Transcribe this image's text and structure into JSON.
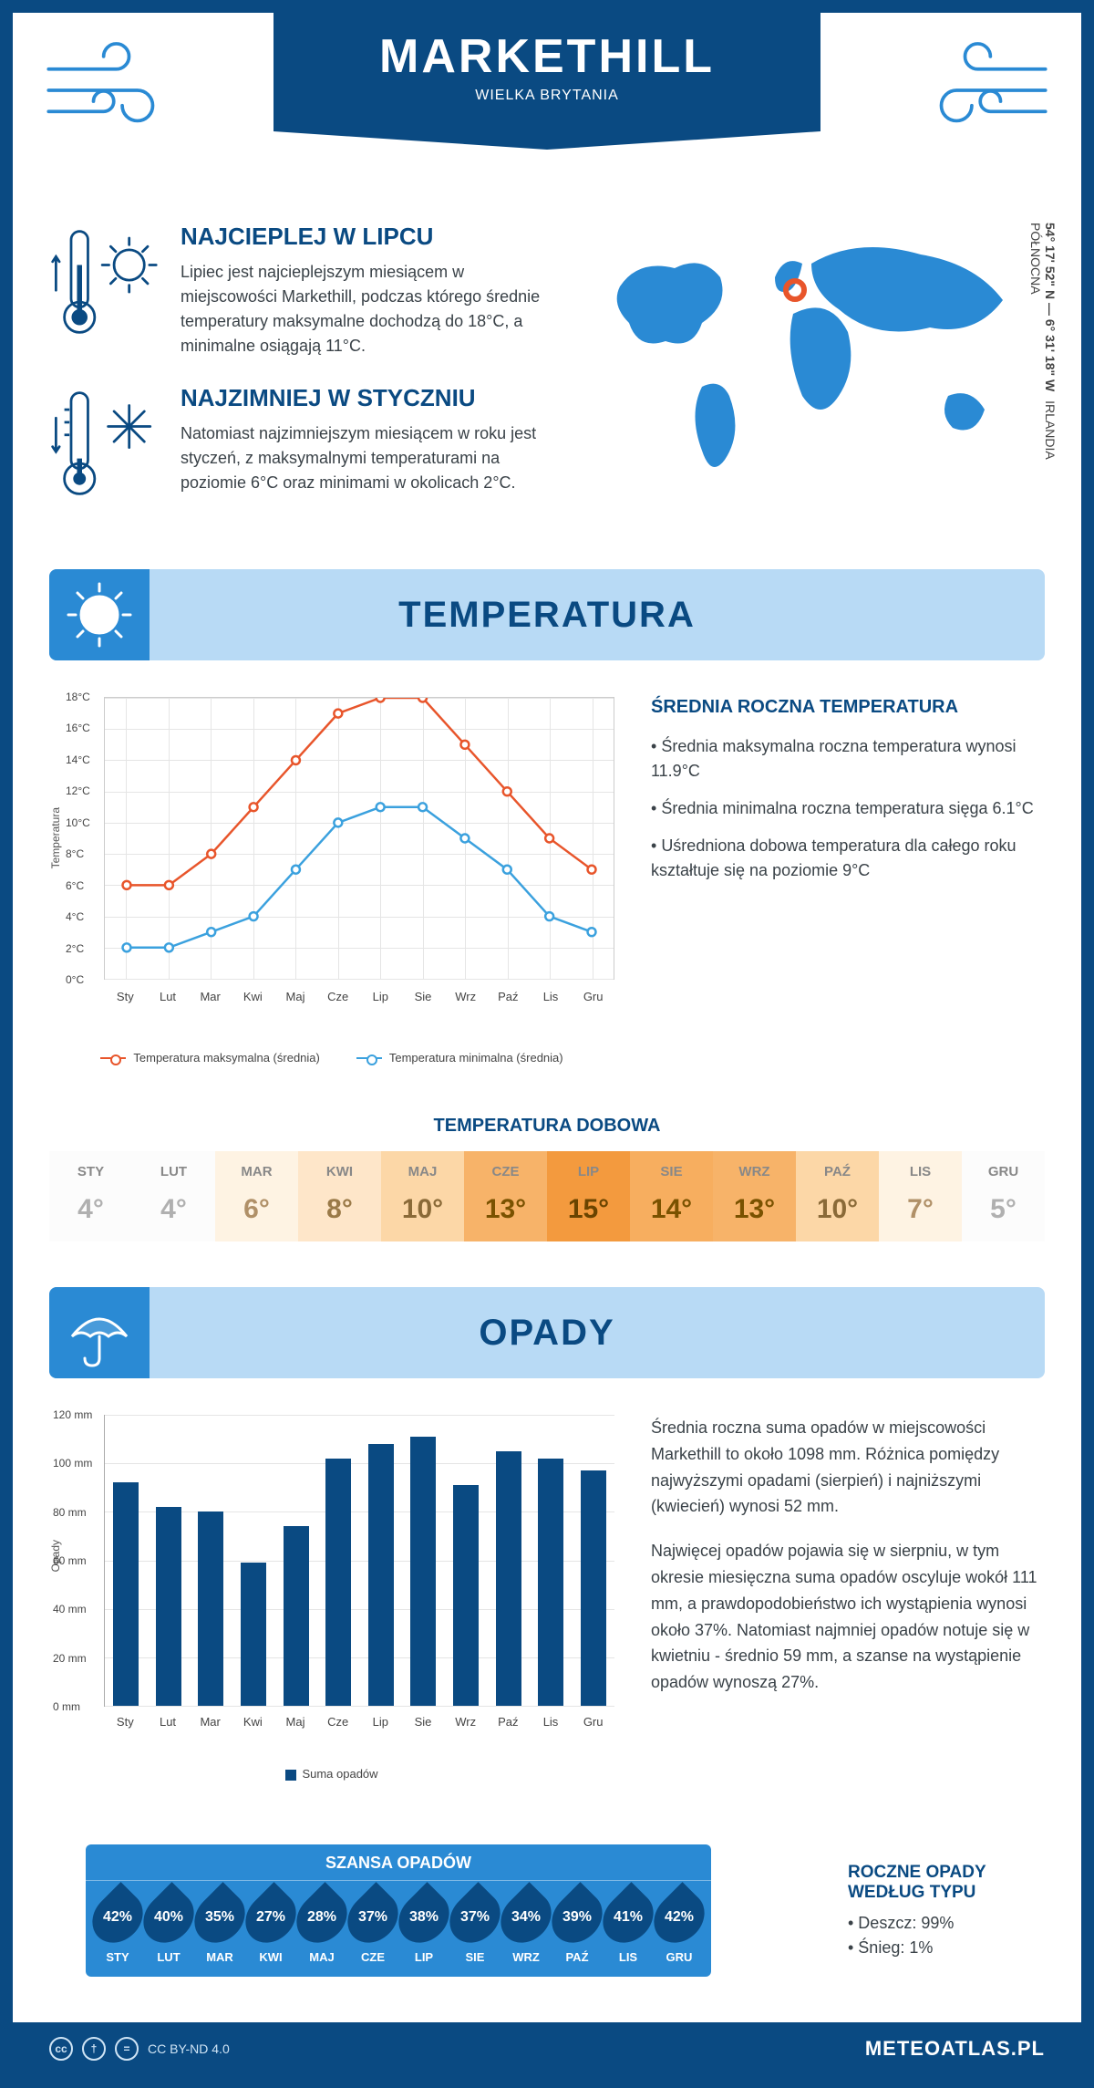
{
  "header": {
    "city": "MARKETHILL",
    "country": "WIELKA BRYTANIA"
  },
  "coords": {
    "line1": "54° 17' 52\" N — 6° 31' 18\" W",
    "line2": "IRLANDIA PÓŁNOCNA"
  },
  "hot": {
    "title": "NAJCIEPLEJ W LIPCU",
    "text": "Lipiec jest najcieplejszym miesiącem w miejscowości Markethill, podczas którego średnie temperatury maksymalne dochodzą do 18°C, a minimalne osiągają 11°C."
  },
  "cold": {
    "title": "NAJZIMNIEJ W STYCZNIU",
    "text": "Natomiast najzimniejszym miesiącem w roku jest styczeń, z maksymalnymi temperaturami na poziomie 6°C oraz minimami w okolicach 2°C."
  },
  "temp_section_title": "TEMPERATURA",
  "temp_chart": {
    "type": "line",
    "y_axis_label": "Temperatura",
    "months": [
      "Sty",
      "Lut",
      "Mar",
      "Kwi",
      "Maj",
      "Cze",
      "Lip",
      "Sie",
      "Wrz",
      "Paź",
      "Lis",
      "Gru"
    ],
    "max_series": {
      "label": "Temperatura maksymalna (średnia)",
      "color": "#e8552b",
      "values": [
        6,
        6,
        8,
        11,
        14,
        17,
        18,
        18,
        15,
        12,
        9,
        7
      ]
    },
    "min_series": {
      "label": "Temperatura minimalna (średnia)",
      "color": "#3ba1de",
      "values": [
        2,
        2,
        3,
        4,
        7,
        10,
        11,
        11,
        9,
        7,
        4,
        3
      ]
    },
    "ylim": [
      0,
      18
    ],
    "ytick_step": 2,
    "grid_color": "#e5e5e5",
    "background_color": "#ffffff"
  },
  "temp_stats": {
    "title": "ŚREDNIA ROCZNA TEMPERATURA",
    "items": [
      "Średnia maksymalna roczna temperatura wynosi 11.9°C",
      "Średnia minimalna roczna temperatura sięga 6.1°C",
      "Uśredniona dobowa temperatura dla całego roku kształtuje się na poziomie 9°C"
    ]
  },
  "daily": {
    "title": "TEMPERATURA DOBOWA",
    "months": [
      "STY",
      "LUT",
      "MAR",
      "KWI",
      "MAJ",
      "CZE",
      "LIP",
      "SIE",
      "WRZ",
      "PAŹ",
      "LIS",
      "GRU"
    ],
    "values": [
      "4°",
      "4°",
      "6°",
      "8°",
      "10°",
      "13°",
      "15°",
      "14°",
      "13°",
      "10°",
      "7°",
      "5°"
    ],
    "cell_bg": [
      "#fcfcfc",
      "#fcfcfc",
      "#fef3e3",
      "#fee6c9",
      "#fcd7a7",
      "#f7b369",
      "#f39a3e",
      "#f7ae5f",
      "#f7b369",
      "#fcd7a7",
      "#fef3e3",
      "#fcfcfc"
    ],
    "cell_fg": [
      "#b0b0b0",
      "#b0b0b0",
      "#b09068",
      "#9a7a48",
      "#8a6a38",
      "#7a5200",
      "#6a4400",
      "#7a5200",
      "#7a5200",
      "#8a6a38",
      "#b09068",
      "#b0b0b0"
    ]
  },
  "precip_section_title": "OPADY",
  "precip_chart": {
    "type": "bar",
    "y_axis_label": "Opady",
    "months": [
      "Sty",
      "Lut",
      "Mar",
      "Kwi",
      "Maj",
      "Cze",
      "Lip",
      "Sie",
      "Wrz",
      "Paź",
      "Lis",
      "Gru"
    ],
    "values": [
      92,
      82,
      80,
      59,
      74,
      102,
      108,
      111,
      91,
      105,
      102,
      97
    ],
    "ylim": [
      0,
      120
    ],
    "ytick_step": 20,
    "bar_color": "#0a4a82",
    "legend": "Suma opadów",
    "grid_color": "#e5e5e5"
  },
  "precip_text": {
    "p1": "Średnia roczna suma opadów w miejscowości Markethill to około 1098 mm. Różnica pomiędzy najwyższymi opadami (sierpień) i najniższymi (kwiecień) wynosi 52 mm.",
    "p2": "Najwięcej opadów pojawia się w sierpniu, w tym okresie miesięczna suma opadów oscyluje wokół 111 mm, a prawdopodobieństwo ich wystąpienia wynosi około 37%. Natomiast najmniej opadów notuje się w kwietniu - średnio 59 mm, a szanse na wystąpienie opadów wynoszą 27%."
  },
  "chance": {
    "title": "SZANSA OPADÓW",
    "months": [
      "STY",
      "LUT",
      "MAR",
      "KWI",
      "MAJ",
      "CZE",
      "LIP",
      "SIE",
      "WRZ",
      "PAŹ",
      "LIS",
      "GRU"
    ],
    "values": [
      "42%",
      "40%",
      "35%",
      "27%",
      "28%",
      "37%",
      "38%",
      "37%",
      "34%",
      "39%",
      "41%",
      "42%"
    ]
  },
  "types": {
    "title": "ROCZNE OPADY WEDŁUG TYPU",
    "items": [
      "Deszcz: 99%",
      "Śnieg: 1%"
    ]
  },
  "footer": {
    "license": "CC BY-ND 4.0",
    "site": "METEOATLAS.PL"
  },
  "colors": {
    "brand": "#0a4a82",
    "band_light": "#b8daf5",
    "band_mid": "#2a8ad4"
  }
}
